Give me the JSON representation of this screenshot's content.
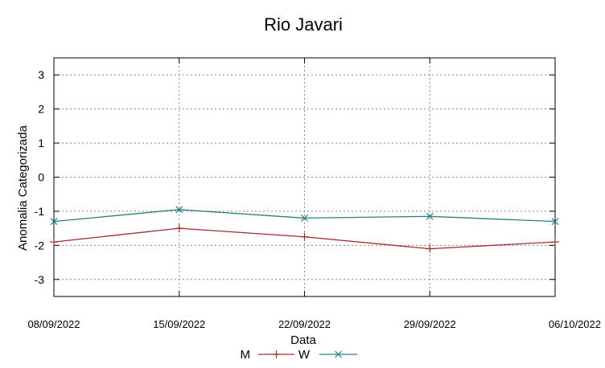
{
  "chart_data": {
    "type": "line",
    "title": "Rio Javari",
    "xlabel": "Data",
    "ylabel": "Anomalia Categorizada",
    "categories": [
      "08/09/2022",
      "15/09/2022",
      "22/09/2022",
      "29/09/2022",
      "06/10/2022"
    ],
    "ylim": [
      -3.5,
      3.5
    ],
    "yticks": [
      "3",
      "2",
      "1",
      "0",
      "-1",
      "-2",
      "-3"
    ],
    "grid": true,
    "legend_position": "bottom-center",
    "series": [
      {
        "name": "M",
        "color": "#a52a2a",
        "marker": "plus",
        "values": [
          -1.9,
          -1.5,
          -1.75,
          -2.1,
          -1.9
        ]
      },
      {
        "name": "W",
        "color": "#2a7f7f",
        "marker": "cross",
        "values": [
          -1.3,
          -0.95,
          -1.2,
          -1.15,
          -1.3
        ]
      }
    ]
  }
}
